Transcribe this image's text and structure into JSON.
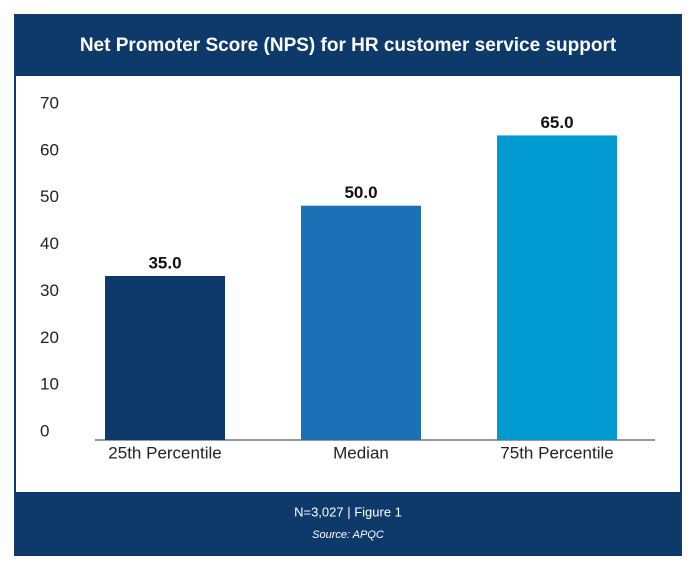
{
  "chart_data": {
    "type": "bar",
    "title": "Net Promoter Score (NPS) for HR customer service support",
    "categories": [
      "25th Percentile",
      "Median",
      "75th Percentile"
    ],
    "values": [
      35,
      50,
      65
    ],
    "value_labels": [
      "35.0",
      "50.0",
      "65.0"
    ],
    "colors": [
      "#0d3a6b",
      "#1b70b6",
      "#0099d0"
    ],
    "ylim": [
      0,
      70
    ],
    "yticks": [
      0,
      10,
      20,
      30,
      40,
      50,
      60,
      70
    ],
    "grid": false,
    "note": "N=3,027 | Figure 1",
    "source": "Source: APQC"
  }
}
